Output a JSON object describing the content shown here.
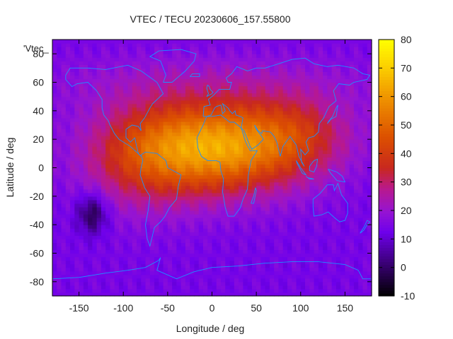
{
  "chart_data": {
    "type": "heatmap",
    "title": "VTEC / TECU 20230606_157.55800",
    "xlabel": "Longitude / deg",
    "ylabel": "Latitude / deg",
    "xlim": [
      -180,
      180
    ],
    "ylim": [
      -90,
      90
    ],
    "x_ticks": [
      -150,
      -100,
      -50,
      0,
      50,
      100,
      150
    ],
    "y_ticks": [
      -80,
      -60,
      -40,
      -20,
      0,
      20,
      40,
      60,
      80
    ],
    "legend": "'Vtec_",
    "colorbar": {
      "range": [
        -10,
        80
      ],
      "ticks": [
        -10,
        0,
        10,
        20,
        30,
        40,
        50,
        60,
        70,
        80
      ]
    },
    "field": {
      "description": "gridded VTEC values (TECU), lon -180..180, lat -90..90",
      "peak_tecu": 62,
      "peak_lon": 5,
      "peak_lat": 15,
      "background_tecu": 14,
      "min_tecu": -3,
      "min_lon": -135,
      "min_lat": -32
    },
    "overlay": "coastlines (blue)",
    "colors": {
      "coastline": "#1e90ff",
      "frame": "#000000"
    }
  }
}
